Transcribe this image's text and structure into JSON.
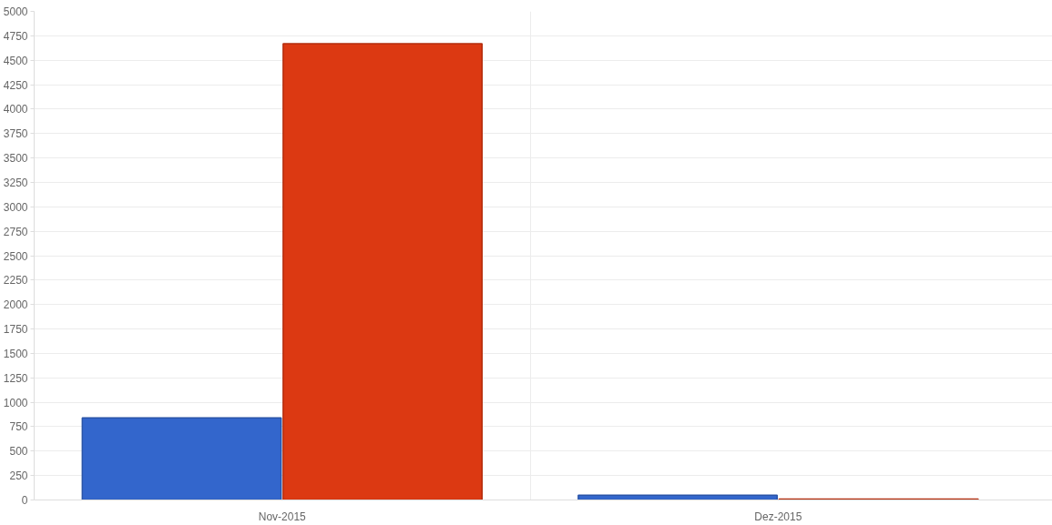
{
  "chart_data": {
    "type": "bar",
    "categories": [
      "Nov-2015",
      "Dez-2015"
    ],
    "series": [
      {
        "color": "#3366cc",
        "values": [
          840,
          50
        ]
      },
      {
        "color": "#dc3912",
        "values": [
          4670,
          10
        ]
      }
    ],
    "ylim": [
      0,
      5000
    ],
    "yticks": [
      0,
      250,
      500,
      750,
      1000,
      1250,
      1500,
      1750,
      2000,
      2250,
      2500,
      2750,
      3000,
      3250,
      3500,
      3750,
      4000,
      4250,
      4500,
      4750,
      5000
    ],
    "grid": true
  }
}
